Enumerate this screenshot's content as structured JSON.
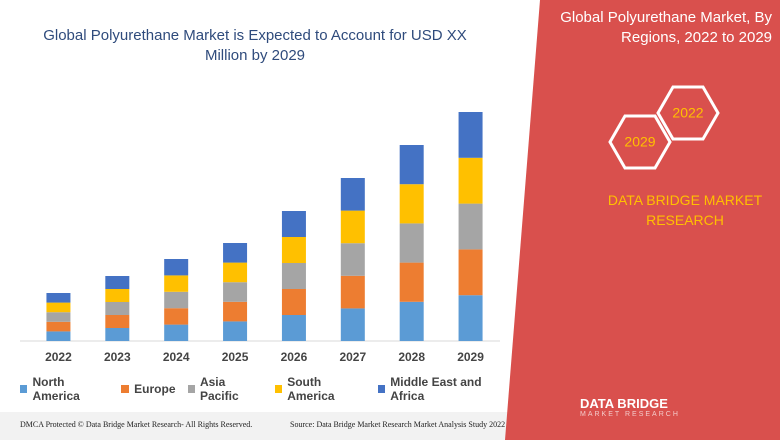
{
  "chart_data": {
    "type": "bar",
    "stacked": true,
    "title": "Global Polyurethane Market is Expected to Account for USD XX Million by 2029",
    "categories": [
      "2022",
      "2023",
      "2024",
      "2025",
      "2026",
      "2027",
      "2028",
      "2029"
    ],
    "series": [
      {
        "name": "North America",
        "color": "#5b9bd5",
        "values": [
          9.6,
          13,
          16.4,
          19.6,
          26,
          32.6,
          39.2,
          45.8
        ]
      },
      {
        "name": "Europe",
        "color": "#ed7d31",
        "values": [
          9.6,
          13,
          16.4,
          19.6,
          26,
          32.6,
          39.2,
          45.8
        ]
      },
      {
        "name": "Asia Pacific",
        "color": "#a5a5a5",
        "values": [
          9.6,
          13,
          16.4,
          19.6,
          26,
          32.6,
          39.2,
          45.8
        ]
      },
      {
        "name": "South America",
        "color": "#ffc000",
        "values": [
          9.6,
          13,
          16.4,
          19.6,
          26,
          32.6,
          39.2,
          45.8
        ]
      },
      {
        "name": "Middle East and Africa",
        "color": "#4472c4",
        "values": [
          9.6,
          13,
          16.4,
          19.6,
          26,
          32.6,
          39.2,
          45.8
        ]
      }
    ],
    "ylim": [
      0,
      240
    ]
  },
  "panel": {
    "title": "Global Polyurethane Market, By Regions, 2022 to 2029",
    "badges": [
      "2022",
      "2029"
    ],
    "company": "DATA BRIDGE MARKET RESEARCH"
  },
  "logo": {
    "name": "DATA BRIDGE",
    "tagline": "MARKET RESEARCH"
  },
  "footer": {
    "left": "DMCA Protected © Data Bridge Market Research- All Rights Reserved.",
    "right": "Source: Data Bridge Market Research Market Analysis Study 2022"
  }
}
